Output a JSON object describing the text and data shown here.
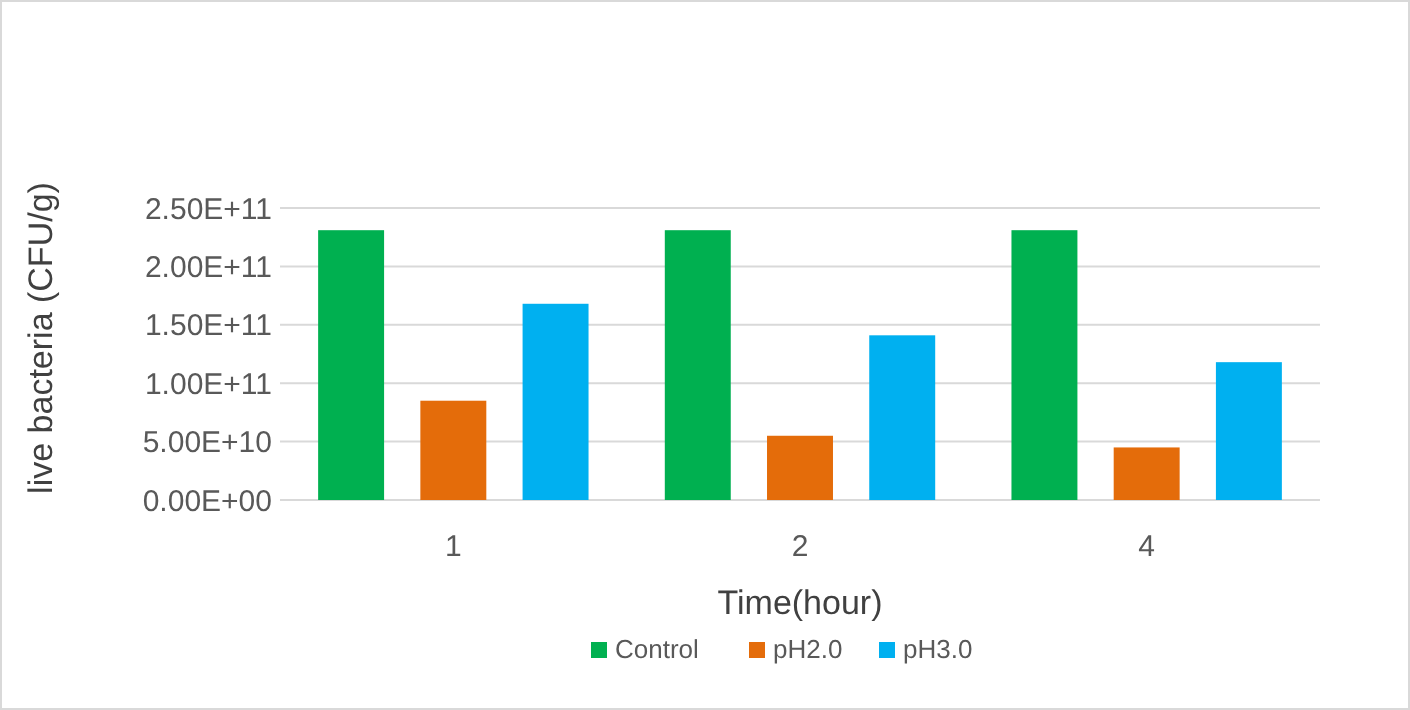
{
  "chart_data": {
    "type": "bar",
    "xlabel": "Time(hour)",
    "ylabel": "live bacteria (CFU/g)",
    "categories": [
      "1",
      "2",
      "4"
    ],
    "series": [
      {
        "name": "Control",
        "color": "#00b050",
        "values": [
          231000000000,
          231000000000,
          231000000000
        ]
      },
      {
        "name": "pH2.0",
        "color": "#e46c0a",
        "values": [
          85000000000,
          55000000000,
          45000000000
        ]
      },
      {
        "name": "pH3.0",
        "color": "#00b0f0",
        "values": [
          168000000000,
          141000000000,
          118000000000
        ]
      }
    ],
    "ylim": [
      0,
      250000000000
    ],
    "yticks": [
      {
        "value": 0,
        "label": "0.00E+00"
      },
      {
        "value": 50000000000,
        "label": "5.00E+10"
      },
      {
        "value": 100000000000,
        "label": "1.00E+11"
      },
      {
        "value": 150000000000,
        "label": "1.50E+11"
      },
      {
        "value": 200000000000,
        "label": "2.00E+11"
      },
      {
        "value": 250000000000,
        "label": "2.50E+11"
      }
    ],
    "grid": "y",
    "legend": "bottom"
  }
}
